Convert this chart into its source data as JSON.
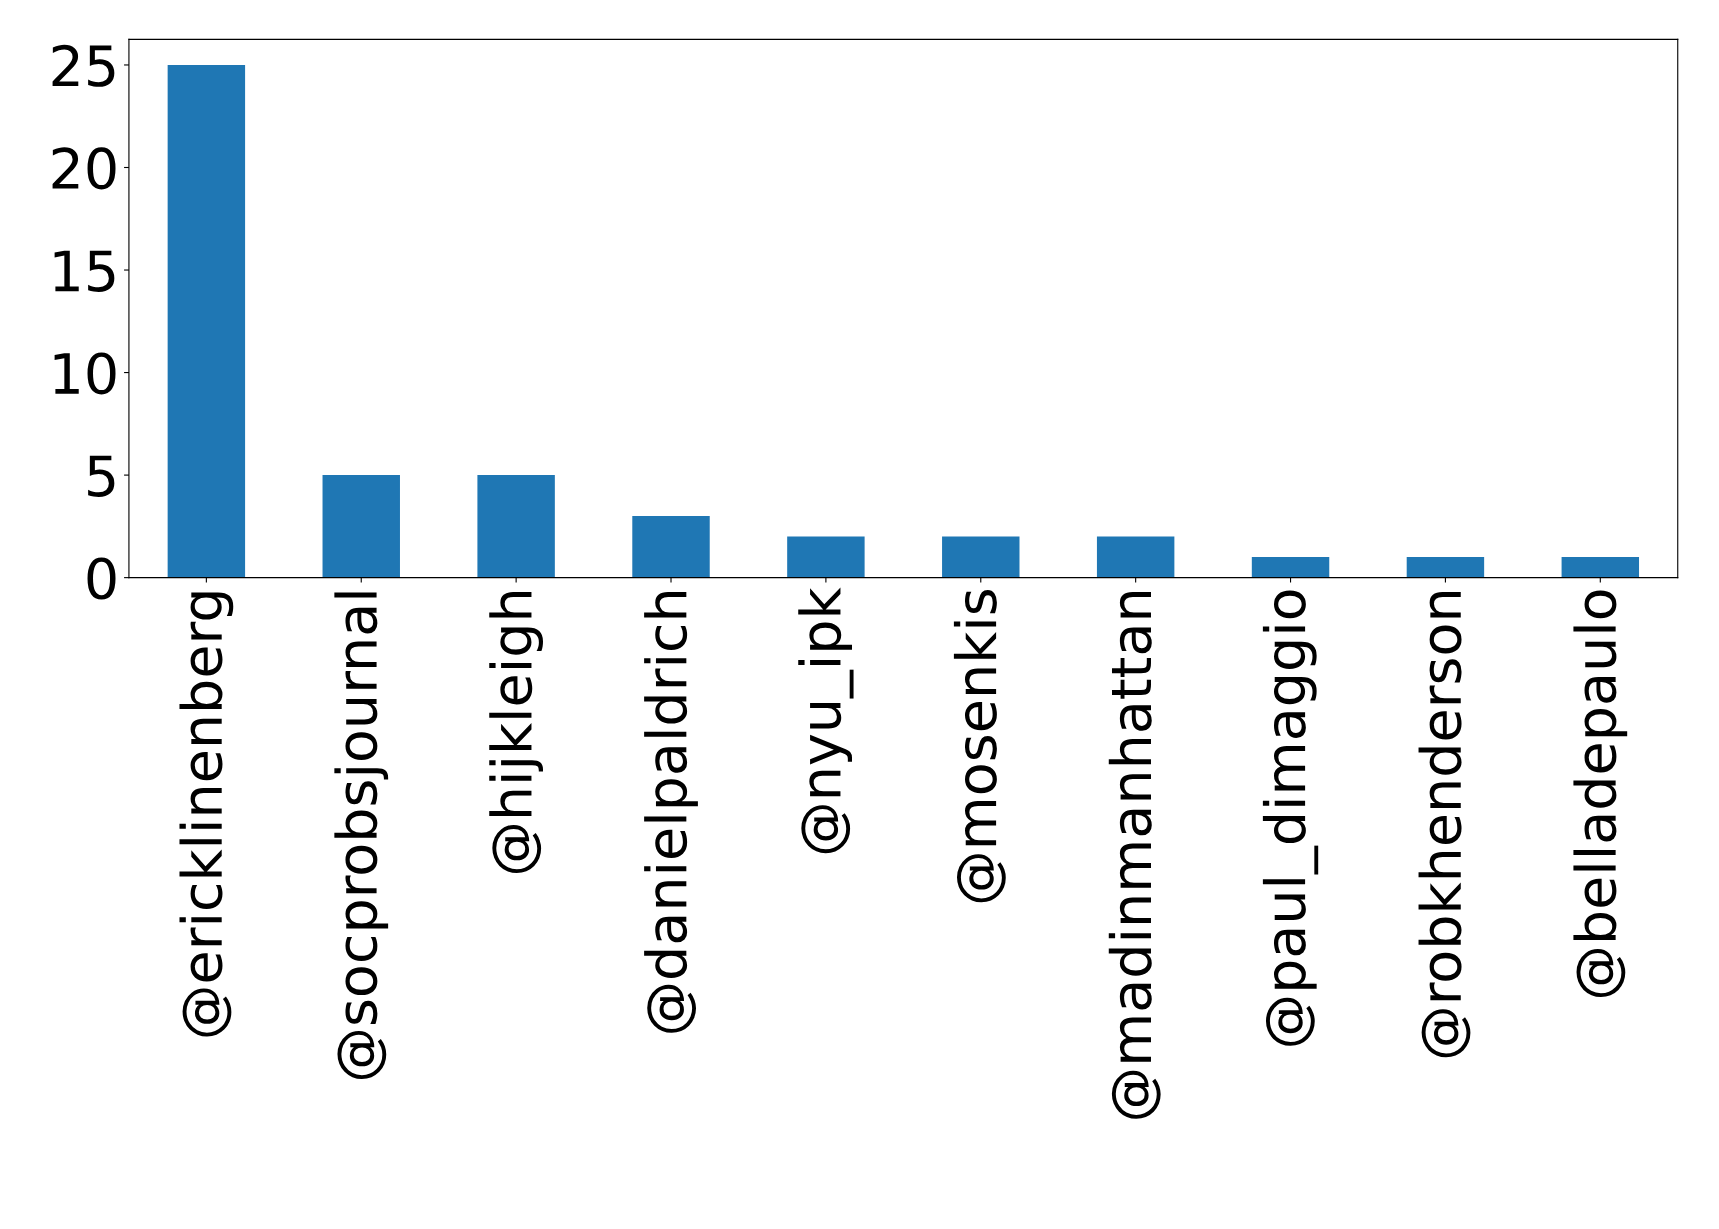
{
  "chart_data": {
    "type": "bar",
    "categories": [
      "@ericklinenberg",
      "@socprobsjournal",
      "@hijkleigh",
      "@danielpaldrich",
      "@nyu_ipk",
      "@mosenkis",
      "@madinmanhattan",
      "@paul_dimaggio",
      "@robkhenderson",
      "@belladepaulo"
    ],
    "values": [
      25,
      5,
      5,
      3,
      2,
      2,
      2,
      1,
      1,
      1
    ],
    "color": "#1f77b4",
    "ylim": [
      0,
      26.25
    ],
    "yticks": [
      0,
      5,
      10,
      15,
      20,
      25
    ],
    "grid": false,
    "legend": false
  }
}
